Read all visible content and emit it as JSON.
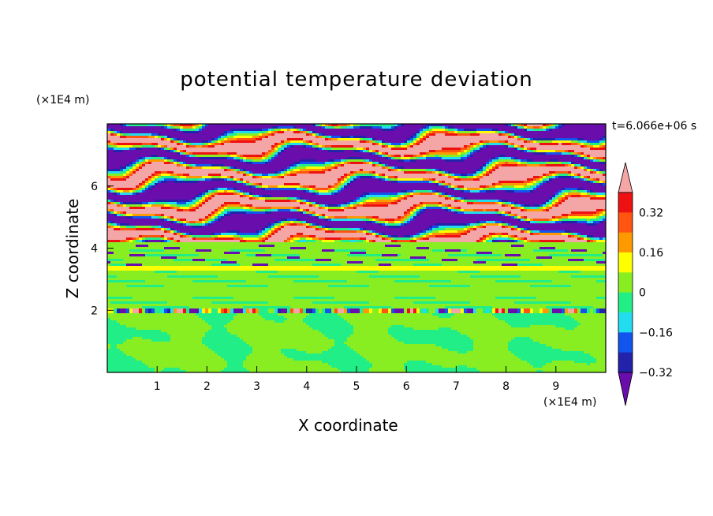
{
  "chart_data": {
    "type": "heatmap",
    "title": "potential temperature deviation",
    "xlabel": "X coordinate",
    "ylabel": "Z coordinate",
    "x_unit": "(×1E4 m)",
    "y_unit": "(×1E4 m)",
    "time_label": "t=6.066e+06 s",
    "xlim": [
      0,
      10
    ],
    "ylim": [
      0,
      8
    ],
    "x_ticks": [
      "1",
      "2",
      "3",
      "4",
      "5",
      "6",
      "7",
      "8",
      "9"
    ],
    "y_ticks": [
      "2",
      "4",
      "6"
    ],
    "colorbar": {
      "tick_labels": [
        "0.32",
        "0.16",
        "0",
        "−0.16",
        "−0.32"
      ],
      "levels": [
        -0.4,
        -0.32,
        -0.24,
        -0.16,
        -0.08,
        0,
        0.08,
        0.16,
        0.24,
        0.32,
        0.4
      ],
      "colors": [
        "#6a0dad",
        "#2222aa",
        "#1155ee",
        "#22ddee",
        "#22ee88",
        "#88ee22",
        "#ffff00",
        "#ff9900",
        "#ff5511",
        "#ee1111",
        "#f4a6a6"
      ]
    },
    "layers": [
      {
        "z_range": [
          0,
          1.9
        ],
        "dominant": "0 to 0.08 with patches of -0.08 to 0"
      },
      {
        "z_range": [
          1.9,
          2.05
        ],
        "dominant": "-0.32 to 0.32 mixed band"
      },
      {
        "z_range": [
          2.05,
          4.2
        ],
        "dominant": "0 to 0.08 with stripes of -0.08 to 0"
      },
      {
        "z_range": [
          4.2,
          8.0
        ],
        "dominant": "alternating > 0.32 and < -0.32"
      }
    ]
  }
}
